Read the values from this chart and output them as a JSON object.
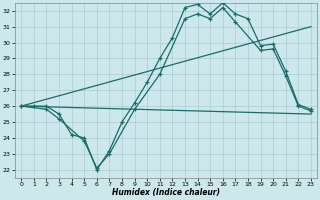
{
  "xlabel": "Humidex (Indice chaleur)",
  "xlim": [
    -0.5,
    23.5
  ],
  "ylim": [
    21.5,
    32.5
  ],
  "xticks": [
    0,
    1,
    2,
    3,
    4,
    5,
    6,
    7,
    8,
    9,
    10,
    11,
    12,
    13,
    14,
    15,
    16,
    17,
    18,
    19,
    20,
    21,
    22,
    23
  ],
  "yticks": [
    22,
    23,
    24,
    25,
    26,
    27,
    28,
    29,
    30,
    31,
    32
  ],
  "bg_color": "#cce8ec",
  "grid_color": "#aacccc",
  "line_color": "#1a6b6b",
  "line1_x": [
    0,
    1,
    2,
    3,
    4,
    5,
    6,
    7,
    8,
    9,
    10,
    11,
    12,
    13,
    14,
    15,
    16,
    17,
    18,
    19,
    20,
    21,
    22,
    23
  ],
  "line1_y": [
    26.0,
    26.0,
    26.0,
    25.5,
    24.2,
    24.0,
    22.0,
    23.2,
    25.0,
    26.2,
    27.5,
    29.0,
    30.3,
    32.2,
    32.4,
    31.8,
    32.5,
    31.8,
    31.5,
    29.8,
    29.9,
    28.2,
    26.1,
    25.8
  ],
  "line2_x": [
    0,
    2,
    3,
    5,
    6,
    7,
    9,
    11,
    13,
    14,
    15,
    16,
    17,
    19,
    20,
    21,
    22,
    23
  ],
  "line2_y": [
    26.0,
    25.8,
    25.2,
    23.8,
    22.1,
    23.0,
    25.8,
    28.0,
    31.5,
    31.8,
    31.5,
    32.2,
    31.3,
    29.5,
    29.6,
    27.9,
    26.0,
    25.7
  ],
  "line3_x": [
    0,
    23
  ],
  "line3_y": [
    26.0,
    31.0
  ],
  "line4_x": [
    0,
    23
  ],
  "line4_y": [
    26.0,
    25.5
  ],
  "figwidth": 3.2,
  "figheight": 2.0,
  "dpi": 100
}
